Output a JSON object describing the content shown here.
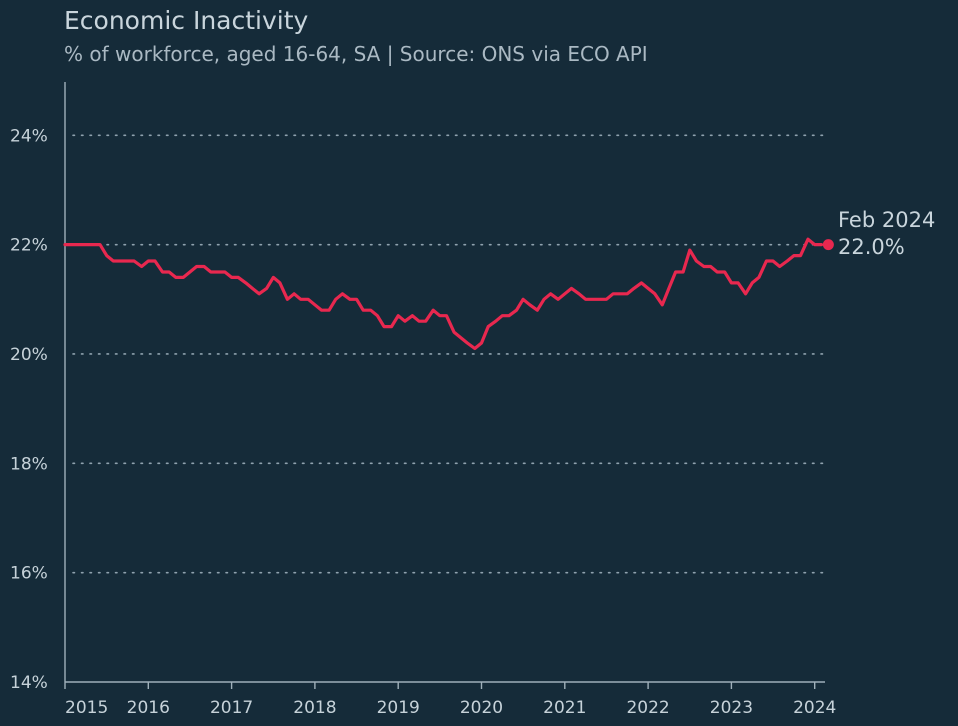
{
  "chart_data": {
    "type": "line",
    "title": "Economic Inactivity",
    "subtitle": "% of workforce, aged 16-64, SA | Source: ONS via ECO API",
    "ylim": [
      14,
      25
    ],
    "y_ticks": [
      14,
      16,
      18,
      20,
      22,
      24
    ],
    "y_tick_labels": [
      "14%",
      "16%",
      "18%",
      "20%",
      "22%",
      "24%"
    ],
    "x_ticks": [
      2015,
      2016,
      2017,
      2018,
      2019,
      2020,
      2021,
      2022,
      2023,
      2024
    ],
    "x_tick_labels": [
      "2015",
      "2016",
      "2017",
      "2018",
      "2019",
      "2020",
      "2021",
      "2022",
      "2023",
      "2024"
    ],
    "xlim": [
      2015.0,
      2024.2
    ],
    "grid": "horizontal dotted",
    "line_color": "#e8284f",
    "series": [
      {
        "x": [
          2015.0,
          2015.08,
          2015.17,
          2015.25,
          2015.33,
          2015.42,
          2015.5,
          2015.58,
          2015.67,
          2015.75,
          2015.83,
          2015.92,
          2016.0,
          2016.08,
          2016.17,
          2016.25,
          2016.33,
          2016.42,
          2016.5,
          2016.58,
          2016.67,
          2016.75,
          2016.83,
          2016.92,
          2017.0,
          2017.08,
          2017.17,
          2017.25,
          2017.33,
          2017.42,
          2017.5,
          2017.58,
          2017.67,
          2017.75,
          2017.83,
          2017.92,
          2018.0,
          2018.08,
          2018.17,
          2018.25,
          2018.33,
          2018.42,
          2018.5,
          2018.58,
          2018.67,
          2018.75,
          2018.83,
          2018.92,
          2019.0,
          2019.08,
          2019.17,
          2019.25,
          2019.33,
          2019.42,
          2019.5,
          2019.58,
          2019.67,
          2019.75,
          2019.83,
          2019.92,
          2020.0,
          2020.08,
          2020.17,
          2020.25,
          2020.33,
          2020.42,
          2020.5,
          2020.58,
          2020.67,
          2020.75,
          2020.83,
          2020.92,
          2021.0,
          2021.08,
          2021.17,
          2021.25,
          2021.33,
          2021.42,
          2021.5,
          2021.58,
          2021.67,
          2021.75,
          2021.83,
          2021.92,
          2022.0,
          2022.08,
          2022.17,
          2022.25,
          2022.33,
          2022.42,
          2022.5,
          2022.58,
          2022.67,
          2022.75,
          2022.83,
          2022.92,
          2023.0,
          2023.08,
          2023.17,
          2023.25,
          2023.33,
          2023.42,
          2023.5,
          2023.58,
          2023.67,
          2023.75,
          2023.83,
          2023.92,
          2024.0,
          2024.08
        ],
        "values": [
          22.0,
          22.0,
          22.0,
          22.0,
          22.0,
          22.0,
          21.8,
          21.7,
          21.7,
          21.7,
          21.7,
          21.6,
          21.7,
          21.7,
          21.5,
          21.5,
          21.4,
          21.4,
          21.5,
          21.6,
          21.6,
          21.5,
          21.5,
          21.5,
          21.4,
          21.4,
          21.3,
          21.2,
          21.1,
          21.2,
          21.4,
          21.3,
          21.0,
          21.1,
          21.0,
          21.0,
          20.9,
          20.8,
          20.8,
          21.0,
          21.1,
          21.0,
          21.0,
          20.8,
          20.8,
          20.7,
          20.5,
          20.5,
          20.7,
          20.6,
          20.7,
          20.6,
          20.6,
          20.8,
          20.7,
          20.7,
          20.4,
          20.3,
          20.2,
          20.1,
          20.2,
          20.5,
          20.6,
          20.7,
          20.7,
          20.8,
          21.0,
          20.9,
          20.8,
          21.0,
          21.1,
          21.0,
          21.1,
          21.2,
          21.1,
          21.0,
          21.0,
          21.0,
          21.0,
          21.1,
          21.1,
          21.1,
          21.2,
          21.3,
          21.2,
          21.1,
          20.9,
          21.2,
          21.5,
          21.5,
          21.9,
          21.7,
          21.6,
          21.6,
          21.5,
          21.5,
          21.3,
          21.3,
          21.1,
          21.3,
          21.4,
          21.7,
          21.7,
          21.6,
          21.7,
          21.8,
          21.8,
          22.1,
          22.0,
          22.0
        ]
      }
    ],
    "end_label": {
      "date": "Feb 2024",
      "value": "22.0%"
    }
  }
}
